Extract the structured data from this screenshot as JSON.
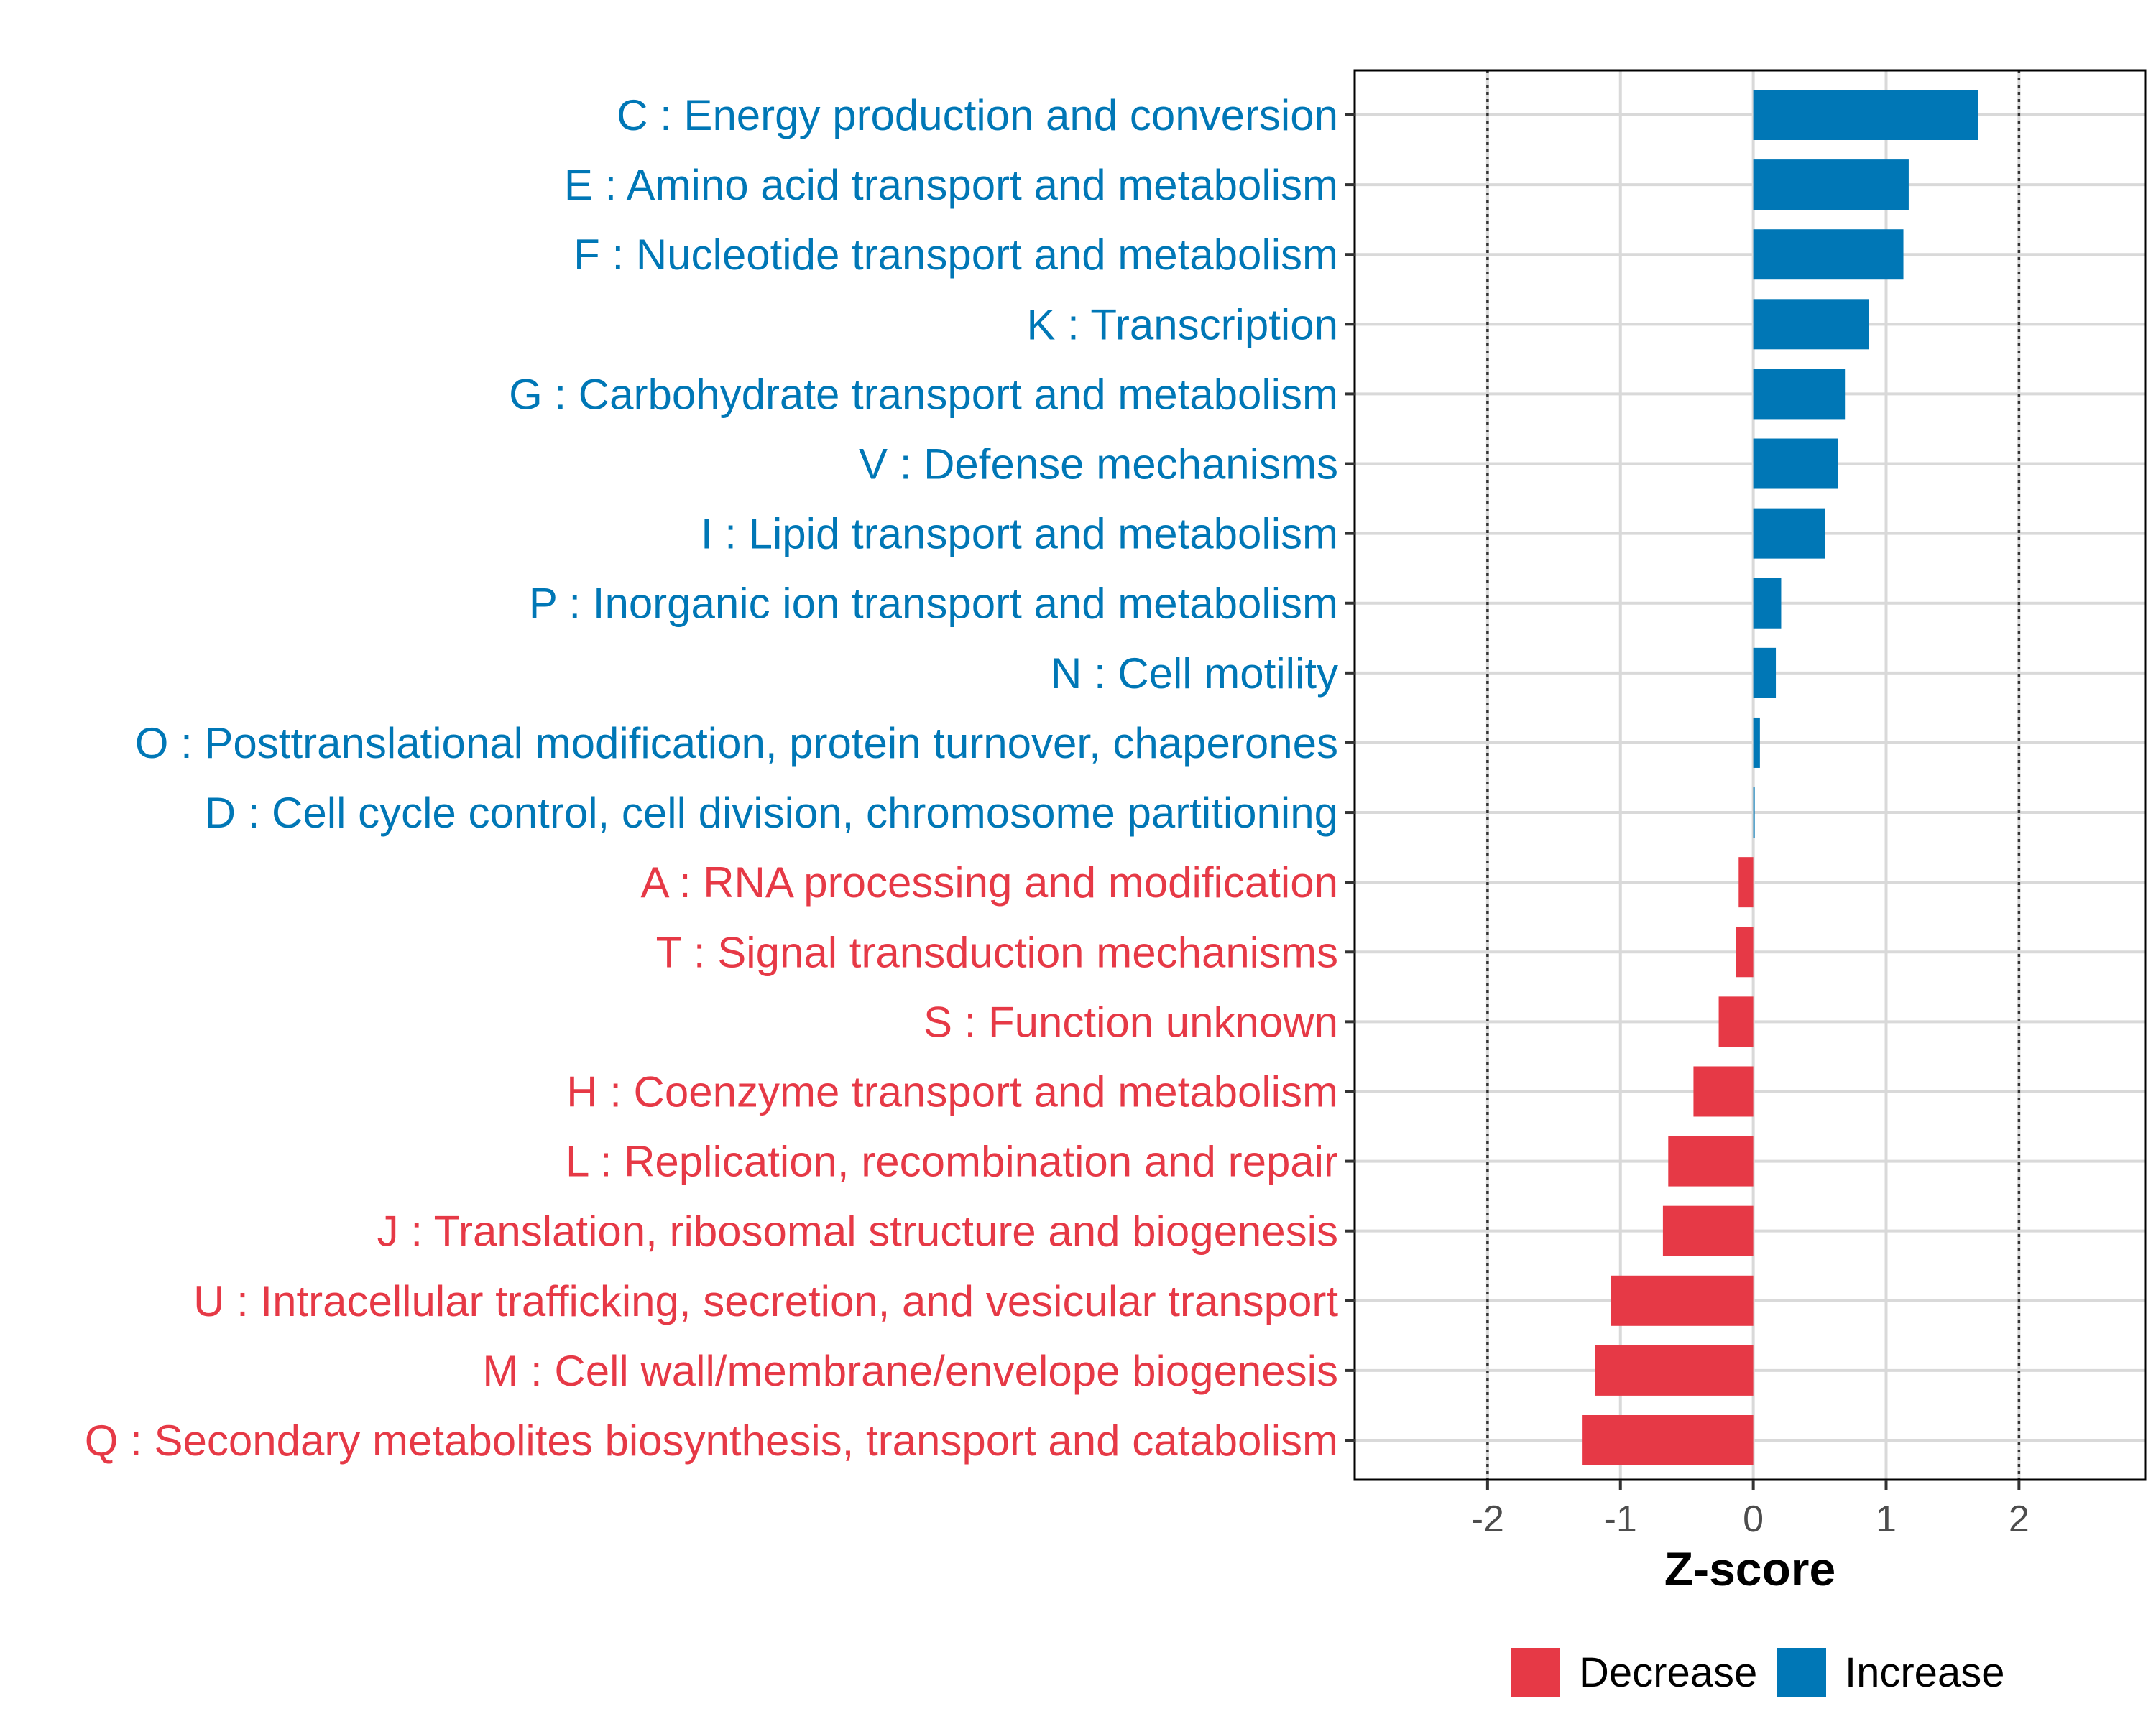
{
  "chart_data": {
    "type": "bar",
    "orientation": "horizontal",
    "xlabel": "Z-score",
    "ylabel": "",
    "xlim": [
      -3.0,
      2.95
    ],
    "xticks": [
      -2,
      -1,
      0,
      1,
      2
    ],
    "xtick_labels": [
      "-2",
      "-1",
      "0",
      "1",
      "2"
    ],
    "reference_lines": [
      -2,
      2
    ],
    "grid": true,
    "legend_position": "bottom",
    "colors": {
      "Decrease": "#e63946",
      "Increase": "#0077b6"
    },
    "legend": [
      {
        "name": "Decrease",
        "color": "#e63946"
      },
      {
        "name": "Increase",
        "color": "#0077b6"
      }
    ],
    "bars": [
      {
        "label": "C : Energy production and conversion",
        "value": 1.69,
        "group": "Increase"
      },
      {
        "label": "E : Amino acid transport and metabolism",
        "value": 1.17,
        "group": "Increase"
      },
      {
        "label": "F : Nucleotide transport and metabolism",
        "value": 1.13,
        "group": "Increase"
      },
      {
        "label": "K : Transcription",
        "value": 0.87,
        "group": "Increase"
      },
      {
        "label": "G : Carbohydrate transport and metabolism",
        "value": 0.69,
        "group": "Increase"
      },
      {
        "label": "V : Defense mechanisms",
        "value": 0.64,
        "group": "Increase"
      },
      {
        "label": "I : Lipid transport and metabolism",
        "value": 0.54,
        "group": "Increase"
      },
      {
        "label": "P : Inorganic ion transport and metabolism",
        "value": 0.21,
        "group": "Increase"
      },
      {
        "label": "N : Cell motility",
        "value": 0.17,
        "group": "Increase"
      },
      {
        "label": "O : Posttranslational modification, protein turnover, chaperones",
        "value": 0.05,
        "group": "Increase"
      },
      {
        "label": "D : Cell cycle control, cell division, chromosome partitioning",
        "value": 0.01,
        "group": "Increase"
      },
      {
        "label": "A : RNA processing and modification",
        "value": -0.11,
        "group": "Decrease"
      },
      {
        "label": "T : Signal transduction mechanisms",
        "value": -0.13,
        "group": "Decrease"
      },
      {
        "label": "S : Function unknown",
        "value": -0.26,
        "group": "Decrease"
      },
      {
        "label": "H : Coenzyme transport and metabolism",
        "value": -0.45,
        "group": "Decrease"
      },
      {
        "label": "L : Replication, recombination and repair",
        "value": -0.64,
        "group": "Decrease"
      },
      {
        "label": "J : Translation, ribosomal structure and biogenesis",
        "value": -0.68,
        "group": "Decrease"
      },
      {
        "label": "U : Intracellular trafficking, secretion, and vesicular transport",
        "value": -1.07,
        "group": "Decrease"
      },
      {
        "label": "M : Cell wall/membrane/envelope biogenesis",
        "value": -1.19,
        "group": "Decrease"
      },
      {
        "label": "Q : Secondary metabolites biosynthesis, transport and catabolism",
        "value": -1.29,
        "group": "Decrease"
      }
    ]
  }
}
